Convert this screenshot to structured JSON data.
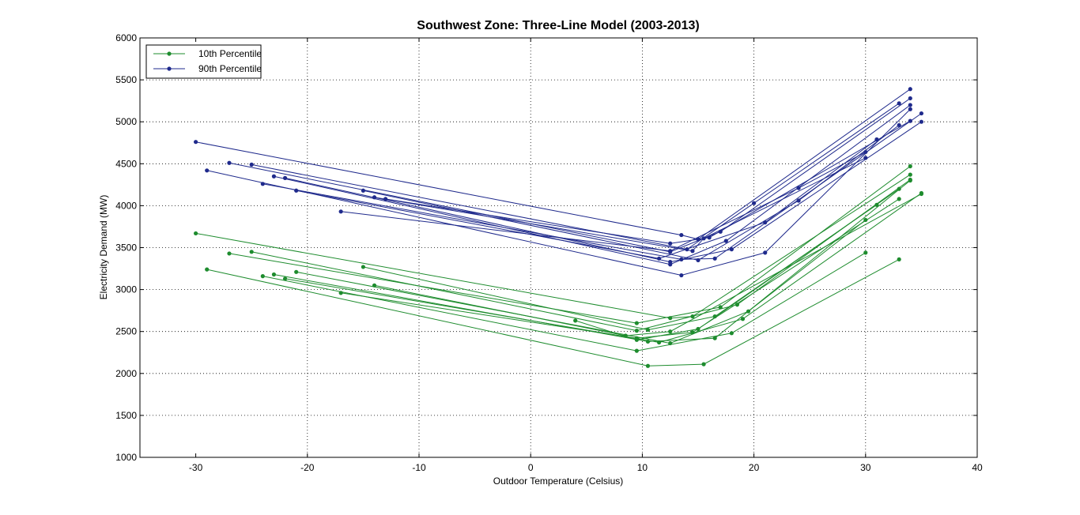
{
  "chart_data": {
    "type": "line",
    "title": "Southwest Zone: Three-Line Model (2003-2013)",
    "xlabel": "Outdoor Temperature (Celsius)",
    "ylabel": "Electricity Demand (MW)",
    "xlim": [
      -35,
      40
    ],
    "ylim": [
      1000,
      6000
    ],
    "xticks": [
      -30,
      -20,
      -10,
      0,
      10,
      20,
      30,
      40
    ],
    "yticks": [
      1000,
      1500,
      2000,
      2500,
      3000,
      3500,
      4000,
      4500,
      5000,
      5500,
      6000
    ],
    "grid": true,
    "legend_position": "top-left",
    "colors": {
      "p10": "#1e8c2e",
      "p90": "#1f2a8c"
    },
    "series": [
      {
        "name": "10th Percentile",
        "group": "p10",
        "lines": [
          [
            [
              -30,
              3670
            ],
            [
              12.5,
              2660
            ],
            [
              14.5,
              2680
            ],
            [
              34,
              4370
            ]
          ],
          [
            [
              -29,
              3240
            ],
            [
              10.5,
              2090
            ],
            [
              15.5,
              2110
            ],
            [
              33,
              3360
            ]
          ],
          [
            [
              -27,
              3430
            ],
            [
              9.5,
              2600
            ],
            [
              17,
              2790
            ],
            [
              34,
              4470
            ]
          ],
          [
            [
              -25,
              3450
            ],
            [
              9.5,
              2510
            ],
            [
              18.5,
              2820
            ],
            [
              34,
              4310
            ]
          ],
          [
            [
              -24,
              3160
            ],
            [
              9.5,
              2270
            ],
            [
              18,
              2480
            ],
            [
              30,
              3440
            ]
          ],
          [
            [
              -23,
              3180
            ],
            [
              10.5,
              2380
            ],
            [
              16.5,
              2420
            ],
            [
              34,
              4300
            ]
          ],
          [
            [
              -22,
              3130
            ],
            [
              11.5,
              2370
            ],
            [
              19,
              2650
            ],
            [
              35,
              4150
            ]
          ],
          [
            [
              -21,
              3210
            ],
            [
              12.5,
              2360
            ],
            [
              19.5,
              2740
            ],
            [
              30,
              3830
            ]
          ],
          [
            [
              -17,
              2960
            ],
            [
              9.5,
              2420
            ],
            [
              14.5,
              2490
            ],
            [
              33,
              4080
            ]
          ],
          [
            [
              -15,
              3270
            ],
            [
              10.5,
              2520
            ],
            [
              16.5,
              2680
            ],
            [
              31,
              4010
            ]
          ],
          [
            [
              -14,
              3050
            ],
            [
              8.5,
              2450
            ],
            [
              12.5,
              2500
            ],
            [
              35,
              4140
            ]
          ],
          [
            [
              4,
              2630
            ],
            [
              9.5,
              2400
            ],
            [
              15,
              2530
            ],
            [
              33,
              4200
            ]
          ]
        ]
      },
      {
        "name": "90th Percentile",
        "group": "p90",
        "lines": [
          [
            [
              -30,
              4760
            ],
            [
              13.5,
              3650
            ],
            [
              15,
              3600
            ],
            [
              34,
              5390
            ]
          ],
          [
            [
              -29,
              4420
            ],
            [
              13.5,
              3170
            ],
            [
              21,
              3440
            ],
            [
              34,
              5150
            ]
          ],
          [
            [
              -27,
              4510
            ],
            [
              12.5,
              3450
            ],
            [
              17,
              3690
            ],
            [
              34,
              5280
            ]
          ],
          [
            [
              -25,
              4490
            ],
            [
              14,
              3480
            ],
            [
              20,
              4030
            ],
            [
              33,
              5220
            ]
          ],
          [
            [
              -24,
              4260
            ],
            [
              13.5,
              3360
            ],
            [
              16.5,
              3370
            ],
            [
              35,
              5100
            ]
          ],
          [
            [
              -23,
              4350
            ],
            [
              12.5,
              3300
            ],
            [
              17.5,
              3580
            ],
            [
              34,
              5200
            ]
          ],
          [
            [
              -22,
              4330
            ],
            [
              12.5,
              3330
            ],
            [
              18,
              3480
            ],
            [
              35,
              5000
            ]
          ],
          [
            [
              -21,
              4180
            ],
            [
              11.5,
              3370
            ],
            [
              21,
              3800
            ],
            [
              31,
              4790
            ]
          ],
          [
            [
              -17,
              3930
            ],
            [
              12.5,
              3460
            ],
            [
              24,
              4210
            ],
            [
              30,
              4640
            ]
          ],
          [
            [
              -15,
              4180
            ],
            [
              15,
              3350
            ],
            [
              24,
              4060
            ],
            [
              33,
              4960
            ]
          ],
          [
            [
              -14,
              4100
            ],
            [
              14.5,
              3460
            ],
            [
              15.5,
              3610
            ],
            [
              30,
              4570
            ]
          ],
          [
            [
              -13,
              4080
            ],
            [
              12.5,
              3550
            ],
            [
              16,
              3620
            ],
            [
              34,
              5010
            ]
          ]
        ]
      }
    ]
  }
}
